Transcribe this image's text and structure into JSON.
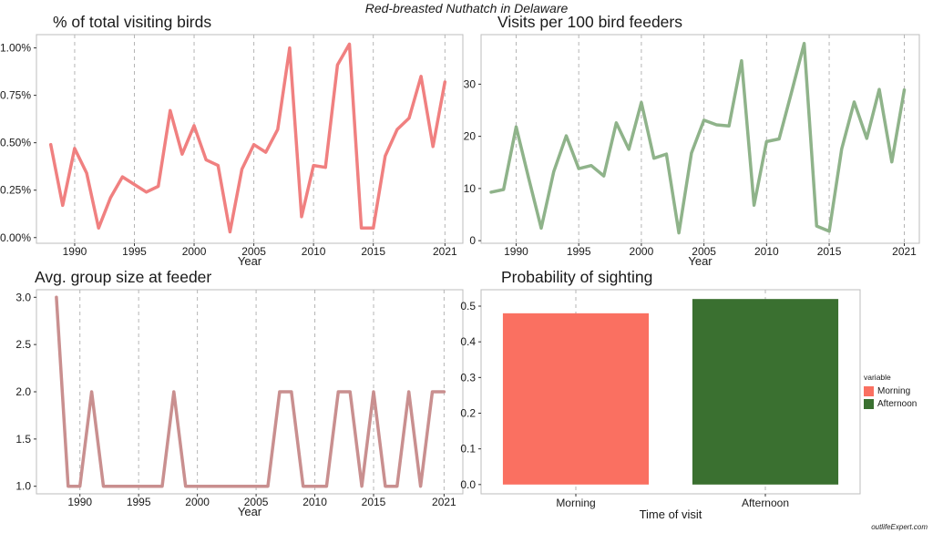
{
  "figure_title": "Red-breasted Nuthatch in Delaware",
  "watermark": "outlifeExpert.com",
  "colors": {
    "pct_line": "#f08080",
    "visits_line": "#8fb38a",
    "group_line": "#c98f8f",
    "morning": "#fa7061",
    "afternoon": "#3a7030",
    "grid": "#b5b5b5",
    "panel_border": "#bdbdbd"
  },
  "legend": {
    "title": "variable",
    "items": [
      {
        "label": "Morning",
        "color": "#fa7061"
      },
      {
        "label": "Afternoon",
        "color": "#3a7030"
      }
    ]
  },
  "chart_data": [
    {
      "type": "line",
      "title": "% of total visiting birds",
      "xlabel": "Year",
      "ylabel": "",
      "x": [
        1988,
        1989,
        1990,
        1991,
        1992,
        1993,
        1994,
        1995,
        1996,
        1997,
        1998,
        1999,
        2000,
        2001,
        2002,
        2003,
        2004,
        2005,
        2006,
        2007,
        2008,
        2009,
        2010,
        2011,
        2012,
        2013,
        2014,
        2015,
        2016,
        2017,
        2018,
        2019,
        2020,
        2021
      ],
      "values": [
        0.49,
        0.17,
        0.47,
        0.34,
        0.05,
        0.21,
        0.32,
        0.28,
        0.24,
        0.27,
        0.67,
        0.44,
        0.59,
        0.41,
        0.38,
        0.03,
        0.36,
        0.49,
        0.45,
        0.57,
        1.0,
        0.11,
        0.38,
        0.37,
        0.91,
        1.02,
        0.05,
        0.05,
        0.43,
        0.57,
        0.63,
        0.85,
        0.48,
        0.82
      ],
      "xlim": [
        1986.8,
        2022.5
      ],
      "ylim": [
        -0.03,
        1.07
      ],
      "x_ticks": [
        1990,
        1995,
        2000,
        2005,
        2010,
        2015,
        2021
      ],
      "y_ticks": [
        0,
        0.25,
        0.5,
        0.75,
        1.0
      ],
      "y_tick_labels": [
        "0.00%",
        "0.25%",
        "0.50%",
        "0.75%",
        "1.00%"
      ],
      "grid_x": [
        1990,
        1995,
        2000,
        2005,
        2010,
        2015,
        2021
      ],
      "line_color": "#f08080"
    },
    {
      "type": "line",
      "title": "Visits per 100 bird feeders",
      "xlabel": "Year",
      "ylabel": "",
      "x": [
        1988,
        1989,
        1990,
        1991,
        1992,
        1993,
        1994,
        1995,
        1996,
        1997,
        1998,
        1999,
        2000,
        2001,
        2002,
        2003,
        2004,
        2005,
        2006,
        2007,
        2008,
        2009,
        2010,
        2011,
        2012,
        2013,
        2014,
        2015,
        2016,
        2017,
        2018,
        2019,
        2020,
        2021
      ],
      "values": [
        9.3,
        9.8,
        21.8,
        12.0,
        2.4,
        13.2,
        20.1,
        13.8,
        14.4,
        12.4,
        22.6,
        17.5,
        26.5,
        15.8,
        16.6,
        1.5,
        16.8,
        23.1,
        22.2,
        22.0,
        34.5,
        6.8,
        19.0,
        19.5,
        28.5,
        37.8,
        2.8,
        1.8,
        17.6,
        26.6,
        19.6,
        29.0,
        15.1,
        28.9
      ],
      "xlim": [
        1987.2,
        2022.2
      ],
      "ylim": [
        -0.5,
        39.5
      ],
      "x_ticks": [
        1990,
        1995,
        2000,
        2005,
        2010,
        2015,
        2021
      ],
      "y_ticks": [
        0,
        10,
        20,
        30
      ],
      "y_tick_labels": [
        "0",
        "10",
        "20",
        "30"
      ],
      "grid_x": [
        1990,
        1995,
        2000,
        2005,
        2010,
        2015,
        2021
      ],
      "line_color": "#8fb38a"
    },
    {
      "type": "line",
      "title": "Avg. group size at feeder",
      "xlabel": "Year",
      "ylabel": "",
      "x": [
        1988,
        1989,
        1990,
        1991,
        1992,
        1993,
        1994,
        1995,
        1996,
        1997,
        1998,
        1999,
        2000,
        2001,
        2002,
        2003,
        2004,
        2005,
        2006,
        2007,
        2008,
        2009,
        2010,
        2011,
        2012,
        2013,
        2014,
        2015,
        2016,
        2017,
        2018,
        2019,
        2020,
        2021
      ],
      "values": [
        3.0,
        1.0,
        1.0,
        2.0,
        1.0,
        1.0,
        1.0,
        1.0,
        1.0,
        1.0,
        2.0,
        1.0,
        1.0,
        1.0,
        1.0,
        1.0,
        1.0,
        1.0,
        1.0,
        2.0,
        2.0,
        1.0,
        1.0,
        1.0,
        2.0,
        2.0,
        1.0,
        2.0,
        1.0,
        1.0,
        2.0,
        1.0,
        2.0,
        2.0
      ],
      "xlim": [
        1986.3,
        2022.6
      ],
      "ylim": [
        0.92,
        3.08
      ],
      "x_ticks": [
        1990,
        1995,
        2000,
        2005,
        2010,
        2015,
        2021
      ],
      "y_ticks": [
        1.0,
        1.5,
        2.0,
        2.5,
        3.0
      ],
      "y_tick_labels": [
        "1.0",
        "1.5",
        "2.0",
        "2.5",
        "3.0"
      ],
      "grid_x": [
        1990,
        1995,
        2000,
        2005,
        2010,
        2015,
        2021
      ],
      "line_color": "#c98f8f"
    },
    {
      "type": "bar",
      "title": "Probability of sighting",
      "xlabel": "Time of visit",
      "ylabel": "",
      "categories": [
        "Morning",
        "Afternoon"
      ],
      "values": [
        0.48,
        0.52
      ],
      "colors": [
        "#fa7061",
        "#3a7030"
      ],
      "ylim": [
        -0.026,
        0.546
      ],
      "y_ticks": [
        0,
        0.1,
        0.2,
        0.3,
        0.4,
        0.5
      ],
      "y_tick_labels": [
        "0.0",
        "0.1",
        "0.2",
        "0.3",
        "0.4",
        "0.5"
      ],
      "legend": {
        "title": "variable",
        "position": "right"
      }
    }
  ]
}
